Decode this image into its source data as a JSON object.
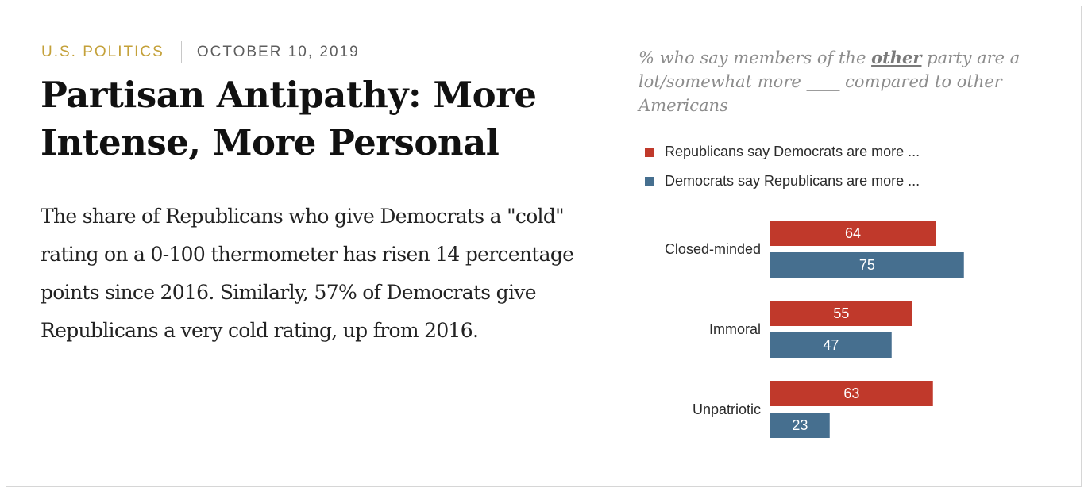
{
  "article": {
    "category": "U.S. POLITICS",
    "date": "OCTOBER 10, 2019",
    "title": "Partisan Antipathy: More Intense, More Personal",
    "summary": "The share of Republicans who give Democrats a \"cold\" rating on a 0-100 thermometer has risen 14 percentage points since 2016. Similarly, 57% of Democrats give Republicans a very cold rating, up from 2016."
  },
  "colors": {
    "category": "#c4a13a",
    "republican": "#c0392b",
    "democrat": "#466f8f"
  },
  "chart_data": {
    "type": "bar",
    "orientation": "horizontal",
    "subtitle_before": "% who say members of the ",
    "subtitle_emphasis": "other",
    "subtitle_after": " party are a lot/somewhat more ____ compared to other Americans",
    "categories": [
      "Closed-minded",
      "Immoral",
      "Unpatriotic"
    ],
    "series": [
      {
        "name": "Republicans say Democrats are more ...",
        "color": "#c0392b",
        "values": [
          64,
          55,
          63
        ]
      },
      {
        "name": "Democrats say Republicans are more ...",
        "color": "#466f8f",
        "values": [
          75,
          47,
          23
        ]
      }
    ],
    "xlim": [
      0,
      100
    ],
    "legend": "top-left",
    "grid": false
  }
}
